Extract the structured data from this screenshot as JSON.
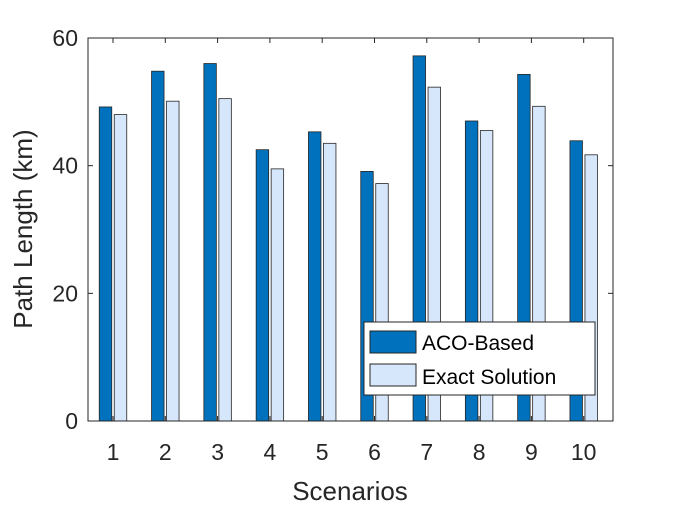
{
  "chart_data": {
    "type": "bar",
    "categories": [
      "1",
      "2",
      "3",
      "4",
      "5",
      "6",
      "7",
      "8",
      "9",
      "10"
    ],
    "series": [
      {
        "name": "ACO-Based",
        "values": [
          49.2,
          54.8,
          56.0,
          42.5,
          45.3,
          39.1,
          57.2,
          47.0,
          54.3,
          43.9
        ],
        "color": "#0072BD"
      },
      {
        "name": "Exact Solution",
        "values": [
          48.0,
          50.1,
          50.5,
          39.5,
          43.5,
          37.2,
          52.3,
          45.5,
          49.3,
          41.7
        ],
        "color": "#D6E6FB"
      }
    ],
    "title": "",
    "xlabel": "Scenarios",
    "ylabel": "Path Length (km)",
    "ylim": [
      0,
      60
    ],
    "yticks": [
      "0",
      "20",
      "40",
      "60"
    ],
    "grid": false,
    "legend_position": "bottom-right"
  }
}
